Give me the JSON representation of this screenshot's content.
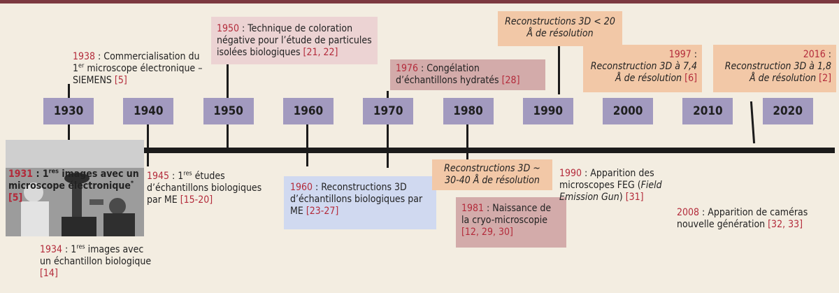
{
  "decades": [
    "1930",
    "1940",
    "1950",
    "1960",
    "1970",
    "1980",
    "1990",
    "2000",
    "2010",
    "2020"
  ],
  "events": {
    "e1938": {
      "year": "1938",
      "text": " : Commercialisation du 1",
      "sup": "er",
      "text2": " microscope électronique – SIEMENS ",
      "ref": "[5]"
    },
    "e1950": {
      "year": "1950",
      "text": " : Technique de coloration négative pour l’étude de particules isolées biologiques ",
      "ref": "[21, 22]"
    },
    "e1976": {
      "year": "1976",
      "text": " : Congélation d’échantillons hydratés ",
      "ref": "[28]"
    },
    "e1990top": {
      "text": "Reconstructions 3D < 20 Å de résolution"
    },
    "e1997": {
      "year": "1997",
      "colon": " :",
      "text": "Reconstruction 3D à 7,4 Å de résolution ",
      "ref": "[6]"
    },
    "e2016": {
      "year": "2016",
      "colon": " :",
      "text": "Reconstruction 3D à 1,8 Å de résolution ",
      "ref": "[2]"
    },
    "e1931": {
      "year": "1931",
      "text": " : 1",
      "sup": "res",
      "text2": " images avec un microscope électronique",
      "star": "*",
      "ref": "[5]"
    },
    "e1934": {
      "year": "1934",
      "text": " : 1",
      "sup": "res",
      "text2": " images avec un échantillon biologique ",
      "ref": "[14]"
    },
    "e1945": {
      "year": "1945",
      "text": " : 1",
      "sup": "res",
      "text2": " études d’échantillons biologiques par ME ",
      "ref": "[15-20]"
    },
    "e1960": {
      "year": "1960",
      "text": " : Reconstructions 3D d’échantillons biologiques par ME ",
      "ref": "[23-27]"
    },
    "e1980rec": {
      "text": "Reconstructions 3D ~ 30-40 Å de résolution"
    },
    "e1981": {
      "year": "1981",
      "text": " : Naissance de la cryo-microscopie ",
      "ref": "[12, 29, 30]"
    },
    "e1990": {
      "year": "1990",
      "text": " : Apparition des microscopes FEG (",
      "em": "Field Emission Gun",
      "text2": ") ",
      "ref": "[31]"
    },
    "e2008": {
      "year": "2008",
      "text": " : Apparition de caméras nouvelle génération ",
      "ref": "[32, 33]"
    }
  },
  "colors": {
    "red": "#b32a3a",
    "decade": "#a29abf",
    "peach": "#f2c8a7",
    "rose": "#ecd3d3",
    "mauve": "#d3abaa",
    "blue": "#d0d9f0"
  }
}
